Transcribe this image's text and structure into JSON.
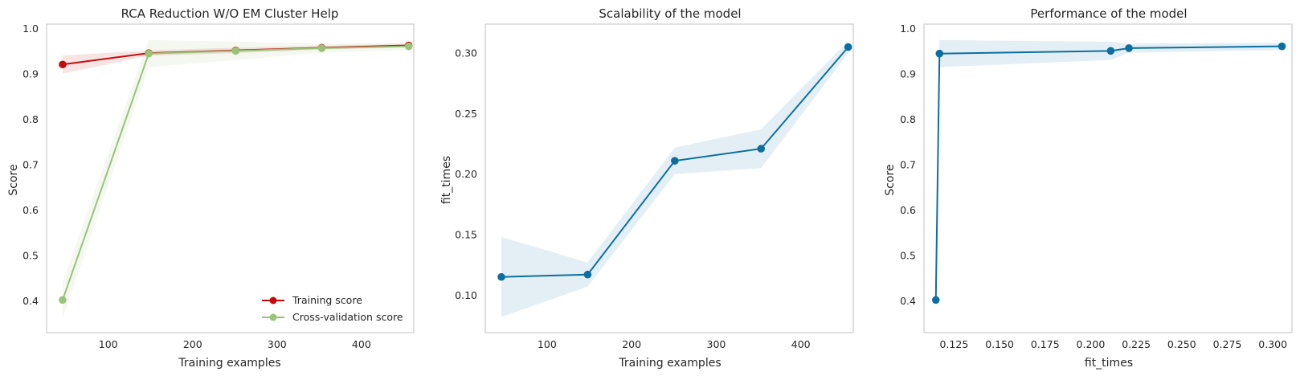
{
  "chart_data": [
    {
      "type": "line",
      "title": "RCA Reduction W/O EM Cluster Help",
      "xlabel": "Training examples",
      "ylabel": "Score",
      "xlim": [
        27,
        462
      ],
      "ylim": [
        0.33,
        1.01
      ],
      "xticks": [
        100,
        200,
        300,
        400
      ],
      "yticks": [
        0.4,
        0.5,
        0.6,
        0.7,
        0.8,
        0.9,
        1.0
      ],
      "ytick_labels": [
        "0.4",
        "0.5",
        "0.6",
        "0.7",
        "0.8",
        "0.9",
        "1.0"
      ],
      "grid": false,
      "legend_position": "bottom-right",
      "x": [
        46,
        148,
        251,
        353,
        456
      ],
      "series": [
        {
          "name": "Training score",
          "color": "#c40c0c",
          "values": [
            0.921,
            0.946,
            0.952,
            0.958,
            0.963
          ],
          "band": [
            0.02,
            0.006,
            0.006,
            0.004,
            0.004
          ]
        },
        {
          "name": "Cross-validation score",
          "color": "#98c378",
          "values": [
            0.402,
            0.945,
            0.951,
            0.957,
            0.961
          ],
          "band": [
            0.04,
            0.03,
            0.02,
            0.01,
            0.008
          ]
        }
      ]
    },
    {
      "type": "line",
      "title": "Scalability of the model",
      "xlabel": "Training examples",
      "ylabel": "fit_times",
      "xlim": [
        27,
        462
      ],
      "ylim": [
        0.069,
        0.324
      ],
      "xticks": [
        100,
        200,
        300,
        400
      ],
      "yticks": [
        0.1,
        0.15,
        0.2,
        0.25,
        0.3
      ],
      "ytick_labels": [
        "0.10",
        "0.15",
        "0.20",
        "0.25",
        "0.30"
      ],
      "grid": false,
      "x": [
        46,
        148,
        251,
        353,
        456
      ],
      "series": [
        {
          "name": "",
          "color": "#0c6fa0",
          "values": [
            0.115,
            0.117,
            0.211,
            0.221,
            0.305
          ],
          "band": [
            0.033,
            0.01,
            0.011,
            0.016,
            0.005
          ]
        }
      ]
    },
    {
      "type": "line",
      "title": "Performance of the model",
      "xlabel": "fit_times",
      "ylabel": "Score",
      "xlim": [
        0.1085,
        0.3105
      ],
      "ylim": [
        0.33,
        1.01
      ],
      "xticks": [
        0.125,
        0.15,
        0.175,
        0.2,
        0.225,
        0.25,
        0.275,
        0.3
      ],
      "xtick_labels": [
        "0.125",
        "0.150",
        "0.175",
        "0.200",
        "0.225",
        "0.250",
        "0.275",
        "0.300"
      ],
      "yticks": [
        0.4,
        0.5,
        0.6,
        0.7,
        0.8,
        0.9,
        1.0
      ],
      "ytick_labels": [
        "0.4",
        "0.5",
        "0.6",
        "0.7",
        "0.8",
        "0.9",
        "1.0"
      ],
      "grid": false,
      "x": [
        0.115,
        0.117,
        0.211,
        0.221,
        0.305
      ],
      "series": [
        {
          "name": "",
          "color": "#0c6fa0",
          "values": [
            0.402,
            0.945,
            0.951,
            0.957,
            0.961
          ],
          "band": [
            0.0,
            0.03,
            0.02,
            0.01,
            0.008
          ]
        }
      ]
    }
  ]
}
